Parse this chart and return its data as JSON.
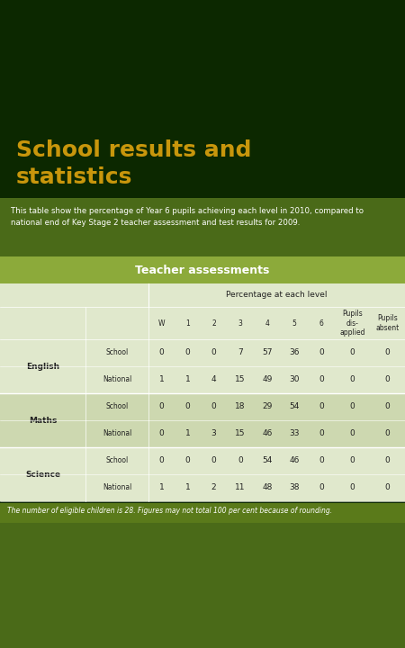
{
  "title_line1": "School results and",
  "title_line2": "statistics",
  "title_color": "#C8960C",
  "bg_dark": "#0C2800",
  "bg_medium": "#4A6A18",
  "bg_light": "#5A7A1A",
  "table_header_bg": "#8CAA3A",
  "table_row_light": "#E0E8CC",
  "table_row_alt": "#CDD8B0",
  "subtitle": "This table show the percentage of Year 6 pupils achieving each level in 2010, compared to\nnational end of Key Stage 2 teacher assessment and test results for 2009.",
  "subtitle_color": "#FFFFFF",
  "section_header": "Teacher assessments",
  "section_header_color": "#FFFFFF",
  "col_headers": [
    "W",
    "1",
    "2",
    "3",
    "4",
    "5",
    "6",
    "Pupils\ndis-\napplied",
    "Pupils\nabsent"
  ],
  "sub_labels": [
    "School",
    "National",
    "School",
    "National",
    "School",
    "National"
  ],
  "subject_labels": [
    "English",
    "Maths",
    "Science"
  ],
  "data": [
    [
      0,
      0,
      0,
      7,
      57,
      36,
      0,
      0,
      0
    ],
    [
      1,
      1,
      4,
      15,
      49,
      30,
      0,
      0,
      0
    ],
    [
      0,
      0,
      0,
      18,
      29,
      54,
      0,
      0,
      0
    ],
    [
      0,
      1,
      3,
      15,
      46,
      33,
      0,
      0,
      0
    ],
    [
      0,
      0,
      0,
      0,
      54,
      46,
      0,
      0,
      0
    ],
    [
      1,
      1,
      2,
      11,
      48,
      38,
      0,
      0,
      0
    ]
  ],
  "footnote": "The number of eligible children is 28. Figures may not total 100 per cent because of rounding.",
  "footnote_color": "#FFFFFF",
  "footnote_bg": "#5A7A1A"
}
